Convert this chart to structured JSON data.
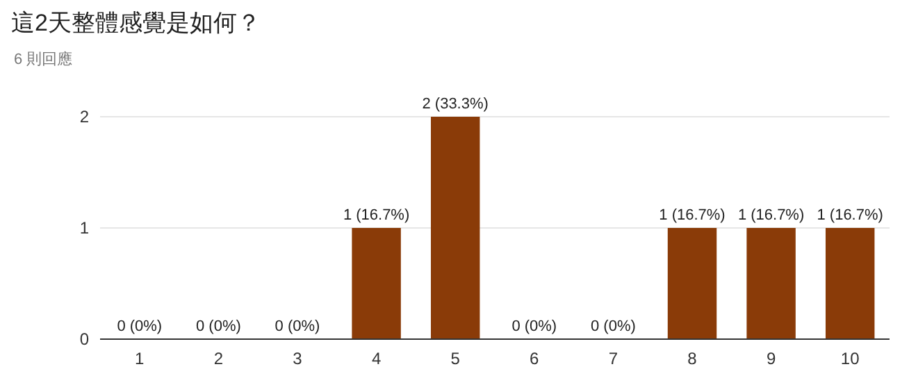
{
  "chart_data": {
    "type": "bar",
    "title": "這2天整體感覺是如何？",
    "subtitle": "6 則回應",
    "categories": [
      "1",
      "2",
      "3",
      "4",
      "5",
      "6",
      "7",
      "8",
      "9",
      "10"
    ],
    "values": [
      0,
      0,
      0,
      1,
      2,
      0,
      0,
      1,
      1,
      1
    ],
    "value_labels": [
      "0 (0%)",
      "0 (0%)",
      "0 (0%)",
      "1 (16.7%)",
      "2 (33.3%)",
      "0 (0%)",
      "0 (0%)",
      "1 (16.7%)",
      "1 (16.7%)",
      "1 (16.7%)"
    ],
    "color": "#8a3b08",
    "ylim": [
      0,
      2
    ],
    "yticks": [
      0,
      1,
      2
    ],
    "grid": "y"
  }
}
